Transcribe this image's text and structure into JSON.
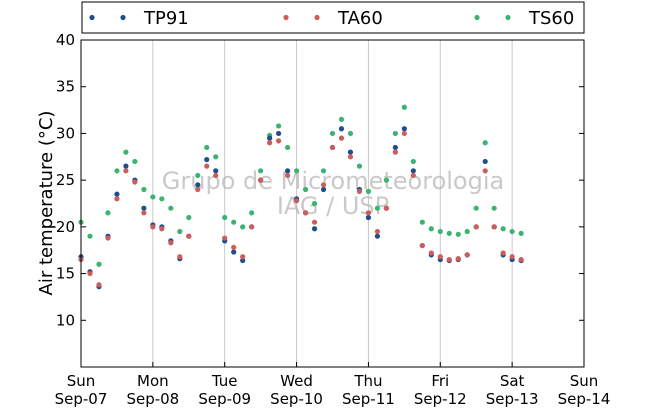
{
  "chart_data": {
    "type": "scatter",
    "title": "",
    "ylabel": "Air temperature (°C)",
    "xlabel": "",
    "xlim": [
      "2014-09-07",
      "2014-09-14"
    ],
    "ylim": [
      5,
      40
    ],
    "yticks": [
      10,
      15,
      20,
      25,
      30,
      35,
      40
    ],
    "xticks": [
      {
        "day": "Sun",
        "date": "Sep-07"
      },
      {
        "day": "Mon",
        "date": "Sep-08"
      },
      {
        "day": "Tue",
        "date": "Sep-09"
      },
      {
        "day": "Wed",
        "date": "Sep-10"
      },
      {
        "day": "Thu",
        "date": "Sep-11"
      },
      {
        "day": "Fri",
        "date": "Sep-12"
      },
      {
        "day": "Sat",
        "date": "Sep-13"
      },
      {
        "day": "Sun",
        "date": "Sep-14"
      }
    ],
    "grid": "vertical",
    "legend_position": "top",
    "watermark": [
      "Grupo de Micrometeorologia",
      "IAG / USP"
    ],
    "x": [
      "2014-09-07 00:00",
      "2014-09-07 03:00",
      "2014-09-07 06:00",
      "2014-09-07 09:00",
      "2014-09-07 12:00",
      "2014-09-07 15:00",
      "2014-09-07 18:00",
      "2014-09-07 21:00",
      "2014-09-08 00:00",
      "2014-09-08 03:00",
      "2014-09-08 06:00",
      "2014-09-08 09:00",
      "2014-09-08 12:00",
      "2014-09-08 15:00",
      "2014-09-08 18:00",
      "2014-09-08 21:00",
      "2014-09-09 00:00",
      "2014-09-09 03:00",
      "2014-09-09 06:00",
      "2014-09-09 09:00",
      "2014-09-09 12:00",
      "2014-09-09 15:00",
      "2014-09-09 18:00",
      "2014-09-09 21:00",
      "2014-09-10 00:00",
      "2014-09-10 03:00",
      "2014-09-10 06:00",
      "2014-09-10 09:00",
      "2014-09-10 12:00",
      "2014-09-10 15:00",
      "2014-09-10 18:00",
      "2014-09-10 21:00",
      "2014-09-11 00:00",
      "2014-09-11 03:00",
      "2014-09-11 06:00",
      "2014-09-11 09:00",
      "2014-09-11 12:00",
      "2014-09-11 15:00",
      "2014-09-11 18:00",
      "2014-09-11 21:00",
      "2014-09-12 00:00",
      "2014-09-12 03:00",
      "2014-09-12 06:00",
      "2014-09-12 09:00",
      "2014-09-12 12:00",
      "2014-09-12 15:00",
      "2014-09-12 18:00",
      "2014-09-12 21:00",
      "2014-09-13 00:00",
      "2014-09-13 03:00"
    ],
    "series": [
      {
        "name": "TP91",
        "color": "#1f4e8c",
        "values": [
          16.8,
          15.2,
          13.6,
          19.0,
          23.5,
          26.5,
          25.0,
          22.0,
          20.2,
          20.0,
          18.5,
          16.6,
          19.0,
          24.5,
          27.2,
          26.0,
          18.5,
          17.3,
          16.4,
          20.0,
          25.0,
          29.5,
          30.0,
          26.0,
          23.0,
          21.5,
          19.8,
          24.0,
          28.5,
          30.5,
          28.0,
          24.0,
          21.0,
          19.0,
          22.0,
          28.5,
          30.5,
          26.0,
          18.0,
          17.0,
          16.5,
          16.4,
          16.5,
          17.0,
          20.0,
          27.0,
          20.0,
          17.0,
          16.5,
          16.4
        ]
      },
      {
        "name": "TA60",
        "color": "#cd5c5c",
        "values": [
          16.5,
          15.0,
          13.8,
          18.8,
          23.0,
          26.0,
          24.8,
          21.5,
          20.0,
          19.8,
          18.3,
          16.8,
          19.0,
          24.0,
          26.5,
          25.5,
          18.8,
          17.8,
          16.8,
          20.0,
          25.0,
          29.0,
          29.2,
          25.5,
          22.8,
          21.5,
          20.5,
          24.5,
          28.5,
          29.5,
          27.5,
          23.8,
          21.5,
          19.5,
          22.0,
          28.0,
          30.0,
          25.5,
          18.0,
          17.2,
          16.8,
          16.5,
          16.6,
          17.0,
          20.0,
          26.0,
          20.0,
          17.2,
          16.8,
          16.5
        ]
      },
      {
        "name": "TS60",
        "color": "#3cb371",
        "values": [
          20.5,
          19.0,
          16.0,
          21.5,
          26.0,
          28.0,
          27.0,
          24.0,
          23.2,
          23.0,
          22.0,
          19.5,
          21.0,
          25.5,
          28.5,
          27.5,
          21.0,
          20.5,
          20.0,
          21.5,
          26.0,
          29.8,
          30.8,
          28.5,
          26.0,
          24.0,
          22.5,
          26.0,
          30.0,
          31.5,
          30.0,
          26.5,
          23.8,
          22.0,
          25.0,
          30.0,
          32.8,
          27.0,
          20.5,
          19.8,
          19.5,
          19.3,
          19.2,
          19.5,
          22.0,
          29.0,
          22.0,
          19.8,
          19.5,
          19.3
        ]
      }
    ]
  }
}
